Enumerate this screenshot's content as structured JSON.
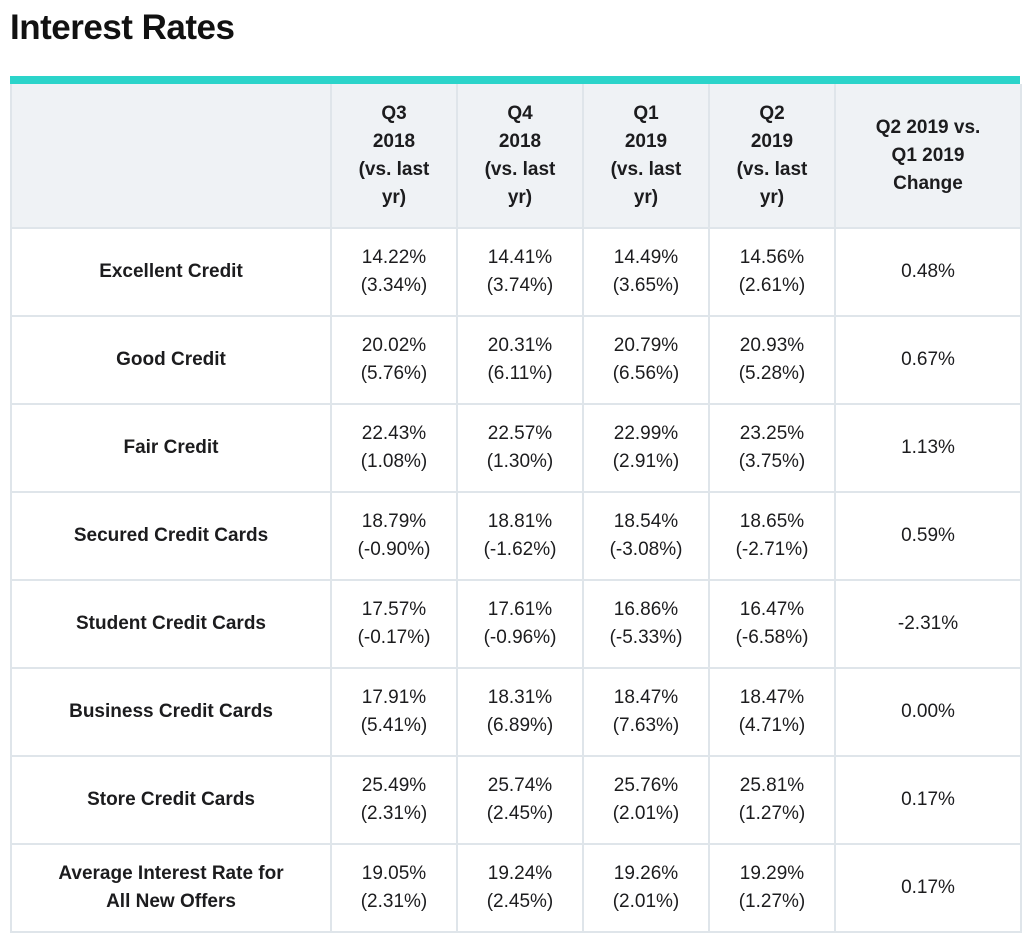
{
  "page": {
    "title": "Interest Rates"
  },
  "theme": {
    "accent_teal": "#2bd4ca",
    "header_bg": "#eff2f5",
    "border": "#dfe5ea",
    "text": "#1c1c1e"
  },
  "chart_data": {
    "type": "table",
    "title": "Interest Rates",
    "columns": [
      {
        "id": "category",
        "lines": [
          ""
        ]
      },
      {
        "id": "q3-2018",
        "lines": [
          "Q3",
          "2018",
          "(vs. last",
          "yr)"
        ]
      },
      {
        "id": "q4-2018",
        "lines": [
          "Q4",
          "2018",
          "(vs. last",
          "yr)"
        ]
      },
      {
        "id": "q1-2019",
        "lines": [
          "Q1",
          "2019",
          "(vs. last",
          "yr)"
        ]
      },
      {
        "id": "q2-2019",
        "lines": [
          "Q2",
          "2019",
          "(vs. last",
          "yr)"
        ]
      },
      {
        "id": "q2-vs-q1-change",
        "lines": [
          "Q2 2019 vs.",
          "Q1 2019",
          "Change"
        ]
      }
    ],
    "rows": [
      {
        "label": "Excellent Credit",
        "cells": [
          {
            "rate": "14.22%",
            "yoy": "(3.34%)"
          },
          {
            "rate": "14.41%",
            "yoy": "(3.74%)"
          },
          {
            "rate": "14.49%",
            "yoy": "(3.65%)"
          },
          {
            "rate": "14.56%",
            "yoy": "(2.61%)"
          }
        ],
        "change": "0.48%"
      },
      {
        "label": "Good Credit",
        "cells": [
          {
            "rate": "20.02%",
            "yoy": "(5.76%)"
          },
          {
            "rate": "20.31%",
            "yoy": "(6.11%)"
          },
          {
            "rate": "20.79%",
            "yoy": "(6.56%)"
          },
          {
            "rate": "20.93%",
            "yoy": "(5.28%)"
          }
        ],
        "change": "0.67%"
      },
      {
        "label": "Fair Credit",
        "cells": [
          {
            "rate": "22.43%",
            "yoy": "(1.08%)"
          },
          {
            "rate": "22.57%",
            "yoy": "(1.30%)"
          },
          {
            "rate": "22.99%",
            "yoy": "(2.91%)"
          },
          {
            "rate": "23.25%",
            "yoy": "(3.75%)"
          }
        ],
        "change": "1.13%"
      },
      {
        "label": "Secured Credit Cards",
        "cells": [
          {
            "rate": "18.79%",
            "yoy": "(-0.90%)"
          },
          {
            "rate": "18.81%",
            "yoy": "(-1.62%)"
          },
          {
            "rate": "18.54%",
            "yoy": "(-3.08%)"
          },
          {
            "rate": "18.65%",
            "yoy": "(-2.71%)"
          }
        ],
        "change": "0.59%"
      },
      {
        "label": "Student Credit Cards",
        "cells": [
          {
            "rate": "17.57%",
            "yoy": "(-0.17%)"
          },
          {
            "rate": "17.61%",
            "yoy": "(-0.96%)"
          },
          {
            "rate": "16.86%",
            "yoy": "(-5.33%)"
          },
          {
            "rate": "16.47%",
            "yoy": "(-6.58%)"
          }
        ],
        "change": "-2.31%"
      },
      {
        "label": "Business Credit Cards",
        "cells": [
          {
            "rate": "17.91%",
            "yoy": "(5.41%)"
          },
          {
            "rate": "18.31%",
            "yoy": "(6.89%)"
          },
          {
            "rate": "18.47%",
            "yoy": "(7.63%)"
          },
          {
            "rate": "18.47%",
            "yoy": "(4.71%)"
          }
        ],
        "change": "0.00%"
      },
      {
        "label": "Store Credit Cards",
        "cells": [
          {
            "rate": "25.49%",
            "yoy": "(2.31%)"
          },
          {
            "rate": "25.74%",
            "yoy": "(2.45%)"
          },
          {
            "rate": "25.76%",
            "yoy": "(2.01%)"
          },
          {
            "rate": "25.81%",
            "yoy": "(1.27%)"
          }
        ],
        "change": "0.17%"
      },
      {
        "label": "Average Interest Rate for\nAll New Offers",
        "cells": [
          {
            "rate": "19.05%",
            "yoy": "(2.31%)"
          },
          {
            "rate": "19.24%",
            "yoy": "(2.45%)"
          },
          {
            "rate": "19.26%",
            "yoy": "(2.01%)"
          },
          {
            "rate": "19.29%",
            "yoy": "(1.27%)"
          }
        ],
        "change": "0.17%"
      }
    ]
  }
}
